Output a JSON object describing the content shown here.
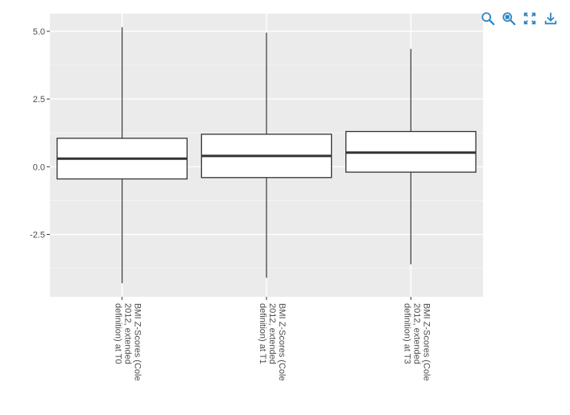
{
  "toolbar": {
    "buttons": [
      {
        "name": "zoom-icon"
      },
      {
        "name": "zoom-select-icon"
      },
      {
        "name": "fit-screen-icon"
      },
      {
        "name": "download-icon"
      }
    ],
    "color": "#2e86c1"
  },
  "chart_data": {
    "type": "boxplot",
    "title": "",
    "xlabel": "",
    "ylabel": "",
    "ylim": [
      -4.8,
      5.65
    ],
    "yticks": [
      5.0,
      2.5,
      0.0,
      -2.5
    ],
    "ytick_labels": [
      "5.0",
      "2.5",
      "0.0",
      "-2.5"
    ],
    "grid": true,
    "legend": "none",
    "panel_color": "#ebebeb",
    "categories": [
      [
        "BMI Z-Scores (Cole",
        "2012, extended",
        "definition) at T0"
      ],
      [
        "BMI Z-Scores (Cole",
        "2012, extended",
        "definition) at T1"
      ],
      [
        "BMI Z-Scores (Cole",
        "2012, extended",
        "definition) at T3"
      ]
    ],
    "boxes": [
      {
        "min": -4.3,
        "q1": -0.45,
        "median": 0.3,
        "q3": 1.05,
        "max": 5.15
      },
      {
        "min": -4.1,
        "q1": -0.4,
        "median": 0.4,
        "q3": 1.2,
        "max": 4.95
      },
      {
        "min": -3.6,
        "q1": -0.2,
        "median": 0.52,
        "q3": 1.3,
        "max": 4.35
      }
    ]
  }
}
